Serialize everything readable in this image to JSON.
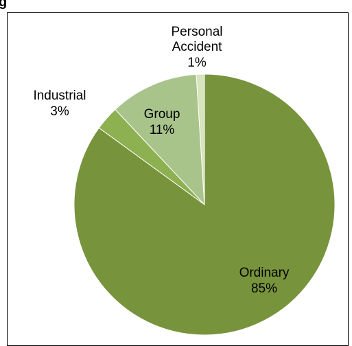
{
  "chart_data": {
    "type": "pie",
    "title": "g",
    "categories": [
      "Ordinary",
      "Industrial",
      "Group",
      "Personal Accident"
    ],
    "values": [
      85,
      3,
      11,
      1
    ],
    "value_labels": [
      "85%",
      "3%",
      "11%",
      "1%"
    ],
    "colors": [
      "#77933c",
      "#8db050",
      "#a9c48b",
      "#d7e4bd"
    ]
  }
}
